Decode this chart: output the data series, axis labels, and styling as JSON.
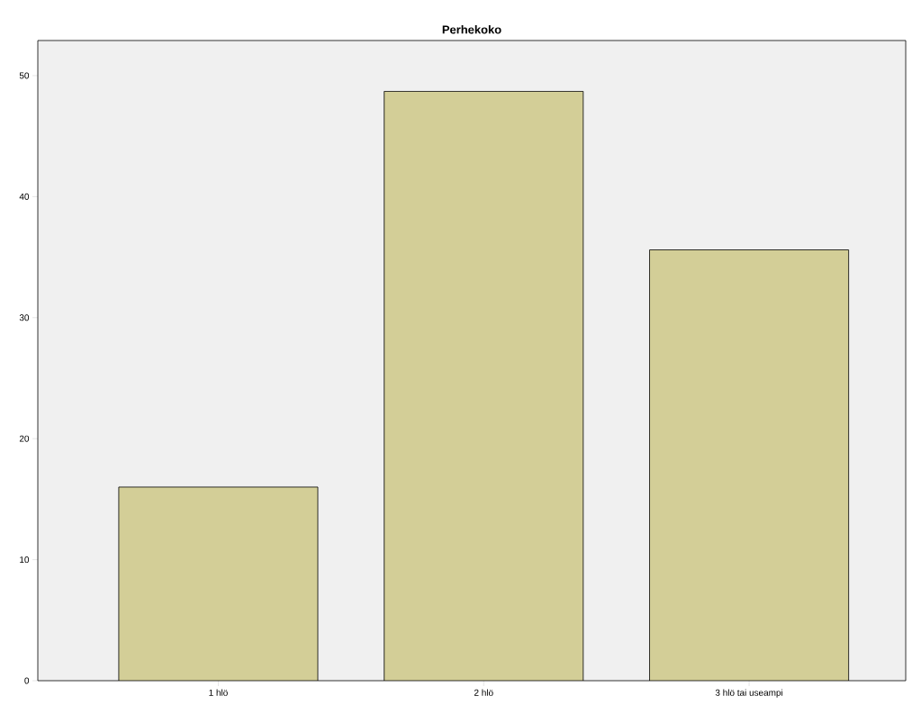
{
  "chart_data": {
    "type": "bar",
    "title": "Perhekoko",
    "categories": [
      "1 hlö",
      "2 hlö",
      "3 hlö tai useampi"
    ],
    "values": [
      16,
      48.7,
      35.6
    ],
    "color": "#d3ce97",
    "ylim": [
      0,
      52.9
    ],
    "yticks": [
      0,
      10,
      20,
      30,
      40,
      50
    ],
    "grid": false
  }
}
